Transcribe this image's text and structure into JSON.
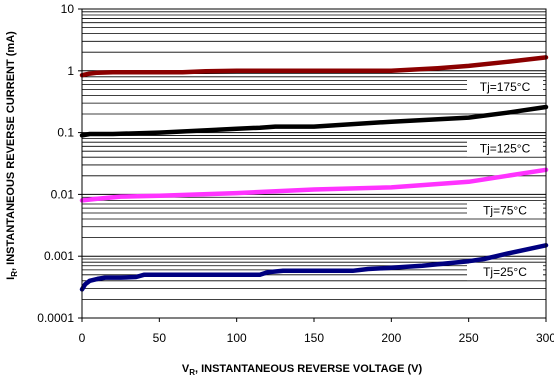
{
  "chart_data": {
    "type": "line",
    "xlabel": {
      "symbol": "V",
      "subscript": "R",
      "text": ", INSTANTANEOUS REVERSE VOLTAGE (V)"
    },
    "ylabel": {
      "symbol": "I",
      "subscript": "R",
      "text": ", INSTANTANEOUS REVERSE CURRENT (mA)"
    },
    "xlim": [
      0,
      300
    ],
    "ylim": [
      0.0001,
      10
    ],
    "yscale": "log",
    "grid": true,
    "x_ticks": [
      0,
      50,
      100,
      150,
      200,
      250,
      300
    ],
    "x_tick_labels": [
      "0",
      "50",
      "100",
      "150",
      "200",
      "250",
      "300"
    ],
    "y_ticks": [
      0.0001,
      0.001,
      0.01,
      0.1,
      1,
      10
    ],
    "y_tick_labels": [
      "0.0001",
      "0.001",
      "0.01",
      "0.1",
      "1",
      "10"
    ],
    "series": [
      {
        "name": "Tj=175°C",
        "color": "#8b0000",
        "x": [
          0,
          5,
          10,
          20,
          40,
          65,
          80,
          100,
          150,
          200,
          230,
          250,
          275,
          300
        ],
        "y": [
          0.85,
          0.9,
          0.93,
          0.95,
          0.95,
          0.95,
          0.98,
          1.0,
          1.0,
          1.0,
          1.1,
          1.2,
          1.4,
          1.65
        ]
      },
      {
        "name": "Tj=125°C",
        "color": "#000000",
        "x": [
          0,
          5,
          20,
          50,
          100,
          115,
          125,
          150,
          200,
          250,
          275,
          300
        ],
        "y": [
          0.09,
          0.095,
          0.095,
          0.1,
          0.115,
          0.12,
          0.125,
          0.125,
          0.15,
          0.175,
          0.21,
          0.26
        ]
      },
      {
        "name": "Tj=75°C",
        "color": "#ff33ff",
        "x": [
          0,
          10,
          25,
          50,
          100,
          150,
          200,
          250,
          275,
          300
        ],
        "y": [
          0.008,
          0.0085,
          0.0092,
          0.0095,
          0.0105,
          0.012,
          0.013,
          0.016,
          0.02,
          0.025
        ]
      },
      {
        "name": "Tj=25°C",
        "color": "#000080",
        "x": [
          0,
          2,
          5,
          10,
          15,
          25,
          35,
          40,
          80,
          100,
          115,
          120,
          130,
          150,
          175,
          185,
          200,
          220,
          250,
          260,
          275,
          300
        ],
        "y": [
          0.00029,
          0.00035,
          0.0004,
          0.00043,
          0.00045,
          0.00045,
          0.00046,
          0.0005,
          0.0005,
          0.0005,
          0.0005,
          0.00055,
          0.00058,
          0.00058,
          0.00058,
          0.00062,
          0.00065,
          0.0007,
          0.00083,
          0.0009,
          0.0011,
          0.0015
        ]
      }
    ],
    "annotations": [
      {
        "text": "Tj=175°C",
        "series": 0
      },
      {
        "text": "Tj=125°C",
        "series": 1
      },
      {
        "text": "Tj=75°C",
        "series": 2
      },
      {
        "text": "Tj=25°C",
        "series": 3
      }
    ]
  }
}
